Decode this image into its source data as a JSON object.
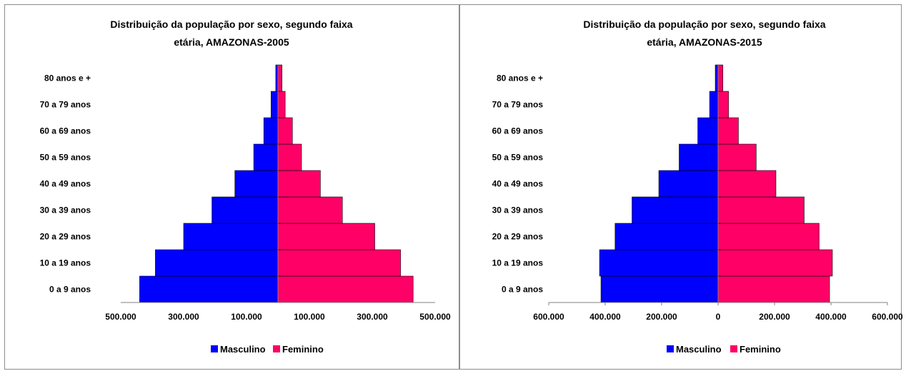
{
  "chart_data": [
    {
      "type": "bar",
      "orientation": "horizontal-population-pyramid",
      "title_lines": [
        "Distribuição da população por sexo, segundo faixa",
        "etária, AMAZONAS-2005"
      ],
      "categories": [
        "0 a 9 anos",
        "10 a 19 anos",
        "20 a 29 anos",
        "30 a 39 anos",
        "40 a 49 anos",
        "50 a 59 anos",
        "60 a 69 anos",
        "70 a 79 anos",
        "80 anos e +"
      ],
      "series": [
        {
          "name": "Masculino",
          "color": "#0000ff",
          "values": [
            440000,
            390000,
            300000,
            210000,
            137000,
            77000,
            45000,
            22000,
            7000
          ]
        },
        {
          "name": "Feminino",
          "color": "#ff0066",
          "values": [
            430000,
            390000,
            308000,
            205000,
            135000,
            75000,
            46000,
            23000,
            13000
          ]
        }
      ],
      "xlim": [
        -500000,
        500000
      ],
      "xticks": [
        {
          "value": -500000,
          "label": "500.000"
        },
        {
          "value": -300000,
          "label": "300.000"
        },
        {
          "value": -100000,
          "label": "100.000"
        },
        {
          "value": 100000,
          "label": "100.000"
        },
        {
          "value": 300000,
          "label": "300.000"
        },
        {
          "value": 500000,
          "label": "500.000"
        }
      ],
      "legend": "bottom"
    },
    {
      "type": "bar",
      "orientation": "horizontal-population-pyramid",
      "title_lines": [
        "Distribuição da população por sexo, segundo faixa",
        "etária, AMAZONAS-2015"
      ],
      "categories": [
        "0 a 9 anos",
        "10 a 19 anos",
        "20 a 29 anos",
        "30 a 39 anos",
        "40 a 49 anos",
        "50 a 59 anos",
        "60 a 69 anos",
        "70 a 79 anos",
        "80 anos e +"
      ],
      "series": [
        {
          "name": "Masculino",
          "color": "#0000ff",
          "values": [
            415000,
            420000,
            365000,
            305000,
            210000,
            138000,
            72000,
            30000,
            10000
          ]
        },
        {
          "name": "Feminino",
          "color": "#ff0066",
          "values": [
            395000,
            405000,
            358000,
            305000,
            205000,
            135000,
            72000,
            37000,
            17000
          ]
        }
      ],
      "xlim": [
        -600000,
        600000
      ],
      "xticks": [
        {
          "value": -600000,
          "label": "600.000"
        },
        {
          "value": -400000,
          "label": "400.000"
        },
        {
          "value": -200000,
          "label": "200.000"
        },
        {
          "value": 0,
          "label": "0"
        },
        {
          "value": 200000,
          "label": "200.000"
        },
        {
          "value": 400000,
          "label": "400.000"
        },
        {
          "value": 600000,
          "label": "600.000"
        }
      ],
      "legend": "bottom"
    }
  ]
}
